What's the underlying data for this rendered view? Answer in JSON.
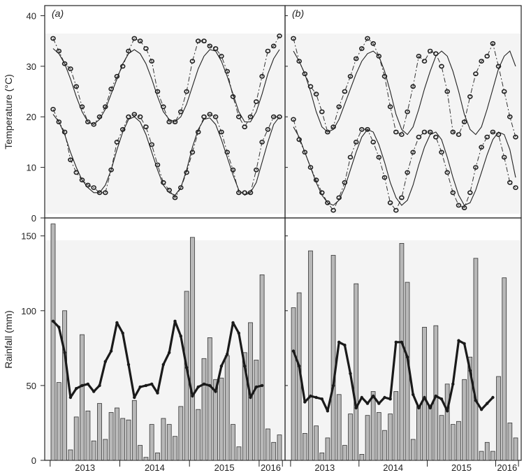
{
  "chart_data": [
    {
      "type": "line",
      "panel_label": "(a)",
      "ylabel": "Temperature (°C)",
      "ylim": [
        0,
        42
      ],
      "yticks": [
        0,
        10,
        20,
        30,
        40
      ],
      "x": [
        "2013-01",
        "2013-02",
        "2013-03",
        "2013-04",
        "2013-05",
        "2013-06",
        "2013-07",
        "2013-08",
        "2013-09",
        "2013-10",
        "2013-11",
        "2013-12",
        "2014-01",
        "2014-02",
        "2014-03",
        "2014-04",
        "2014-05",
        "2014-06",
        "2014-07",
        "2014-08",
        "2014-09",
        "2014-10",
        "2014-11",
        "2014-12",
        "2015-01",
        "2015-02",
        "2015-03",
        "2015-04",
        "2015-05",
        "2015-06",
        "2015-07",
        "2015-08",
        "2015-09",
        "2015-10",
        "2015-11",
        "2015-12",
        "2016-01",
        "2016-02",
        "2016-03",
        "2016-04"
      ],
      "series": [
        {
          "role": "tmax-observed",
          "values": [
            35.5,
            33,
            30.5,
            29.5,
            26,
            22,
            19,
            18.5,
            20,
            22,
            25.5,
            28,
            30,
            33,
            35.5,
            35,
            33.5,
            31,
            25,
            22,
            19,
            19,
            21,
            25,
            31,
            35,
            35,
            34,
            33.5,
            32,
            29,
            24,
            20,
            18,
            20,
            23,
            28,
            33,
            34,
            36
          ]
        },
        {
          "role": "tmax-model",
          "values": [
            33.5,
            32.5,
            30.5,
            27.5,
            24,
            21,
            19,
            18.5,
            19.5,
            21.5,
            24.5,
            27.5,
            30.5,
            32.5,
            33.3,
            32.5,
            30.5,
            27.5,
            24,
            21,
            19.5,
            19,
            20,
            22.5,
            26,
            29.5,
            32,
            33.3,
            33,
            31,
            28,
            24.5,
            21,
            19,
            19,
            21,
            24.5,
            28.5,
            31.5,
            33.3
          ]
        },
        {
          "role": "tmin-observed",
          "values": [
            21.5,
            19,
            17,
            11.5,
            9,
            7.5,
            6.5,
            6,
            5,
            5,
            9.5,
            15,
            17.5,
            20,
            20.5,
            20,
            18,
            14.5,
            10.5,
            7,
            5.5,
            4,
            6,
            9,
            13,
            17,
            20,
            20.5,
            20,
            17,
            13,
            9.5,
            5,
            5,
            5,
            9.5,
            15,
            17.5,
            20,
            20
          ]
        },
        {
          "role": "tmin-model",
          "values": [
            20.5,
            19,
            16.5,
            13,
            10,
            7.5,
            6,
            5,
            5,
            6.5,
            9.5,
            13.5,
            17,
            19.5,
            20,
            19,
            16.5,
            13,
            9.5,
            6.5,
            5,
            4.5,
            6,
            9.5,
            14,
            17.5,
            19.5,
            19.8,
            18.5,
            15.5,
            12,
            8.5,
            5.5,
            4.5,
            5,
            7,
            11,
            15,
            18.5,
            20
          ]
        }
      ]
    },
    {
      "type": "line",
      "panel_label": "(b)",
      "ylim": [
        0,
        42
      ],
      "x": [
        "2013-01",
        "2013-02",
        "2013-03",
        "2013-04",
        "2013-05",
        "2013-06",
        "2013-07",
        "2013-08",
        "2013-09",
        "2013-10",
        "2013-11",
        "2013-12",
        "2014-01",
        "2014-02",
        "2014-03",
        "2014-04",
        "2014-05",
        "2014-06",
        "2014-07",
        "2014-08",
        "2014-09",
        "2014-10",
        "2014-11",
        "2014-12",
        "2015-01",
        "2015-02",
        "2015-03",
        "2015-04",
        "2015-05",
        "2015-06",
        "2015-07",
        "2015-08",
        "2015-09",
        "2015-10",
        "2015-11",
        "2015-12",
        "2016-01",
        "2016-02",
        "2016-03",
        "2016-04"
      ],
      "series": [
        {
          "role": "tmax-observed",
          "values": [
            35.5,
            31,
            28.5,
            26,
            24.5,
            21,
            17,
            18,
            22,
            25,
            28,
            31.5,
            33.5,
            35.5,
            34.5,
            32,
            28,
            22,
            17,
            16.5,
            21,
            26,
            32,
            31,
            33,
            32.5,
            30,
            25,
            17,
            16.5,
            19,
            24,
            28.5,
            31,
            32,
            34.5,
            30,
            25,
            20,
            16
          ]
        },
        {
          "role": "tmax-model",
          "values": [
            33,
            31,
            28.5,
            25,
            21,
            18,
            17,
            17.5,
            19.5,
            22.5,
            25.5,
            28.5,
            31,
            32.5,
            33,
            32,
            29,
            25,
            20.5,
            17.5,
            16.5,
            18,
            21.5,
            25.5,
            29,
            32,
            33,
            32,
            29,
            25,
            20.5,
            17.5,
            16.5,
            18,
            21.5,
            25.5,
            29.5,
            32,
            33,
            30
          ]
        },
        {
          "role": "tmin-observed",
          "values": [
            19.5,
            15.5,
            13,
            10,
            7.5,
            5,
            3,
            1.5,
            4,
            7,
            12,
            15,
            17.5,
            17.5,
            15,
            12,
            8,
            3,
            1.5,
            4,
            9,
            13,
            16,
            17,
            17,
            16,
            13,
            9,
            5,
            2.5,
            2,
            5,
            10,
            14,
            16,
            17,
            16.5,
            12,
            7,
            6
          ]
        },
        {
          "role": "tmin-model",
          "values": [
            18,
            16,
            13,
            10,
            7,
            4.5,
            3,
            2.5,
            3.5,
            6,
            9.5,
            13,
            16,
            17.5,
            17,
            14.5,
            11,
            7,
            4,
            2.5,
            3.5,
            6.5,
            10.5,
            14,
            16.5,
            17,
            15.5,
            12,
            8,
            4.5,
            2.5,
            3,
            5.5,
            9,
            12.5,
            15.5,
            17,
            16.5,
            13.5,
            8
          ]
        }
      ]
    },
    {
      "type": "bar",
      "ylabel": "Rainfall (mm)",
      "ylim": [
        0,
        162
      ],
      "yticks": [
        0,
        50,
        100,
        150
      ],
      "xlabels": [
        "2013",
        "2014",
        "2015",
        "2016"
      ],
      "x": [
        "2013-01",
        "2013-02",
        "2013-03",
        "2013-04",
        "2013-05",
        "2013-06",
        "2013-07",
        "2013-08",
        "2013-09",
        "2013-10",
        "2013-11",
        "2013-12",
        "2014-01",
        "2014-02",
        "2014-03",
        "2014-04",
        "2014-05",
        "2014-06",
        "2014-07",
        "2014-08",
        "2014-09",
        "2014-10",
        "2014-11",
        "2014-12",
        "2015-01",
        "2015-02",
        "2015-03",
        "2015-04",
        "2015-05",
        "2015-06",
        "2015-07",
        "2015-08",
        "2015-09",
        "2015-10",
        "2015-11",
        "2015-12",
        "2016-01",
        "2016-02",
        "2016-03",
        "2016-04"
      ],
      "values": [
        158,
        52,
        100,
        7,
        29,
        84,
        33,
        13,
        38,
        14,
        32,
        35,
        28,
        27,
        40,
        10,
        2,
        24,
        5,
        28,
        24,
        16,
        36,
        113,
        149,
        34,
        68,
        82,
        54,
        55,
        70,
        24,
        9,
        72,
        92,
        67,
        124,
        21,
        12,
        17
      ],
      "line_values": [
        93,
        89,
        72,
        42,
        48,
        50,
        51,
        46,
        50,
        66,
        73,
        92,
        85,
        64,
        42,
        49,
        50,
        51,
        45,
        64,
        72,
        93,
        83,
        62,
        43,
        49,
        51,
        50,
        46,
        63,
        71,
        92,
        85,
        63,
        42,
        49,
        50
      ]
    },
    {
      "type": "bar",
      "ylim": [
        0,
        162
      ],
      "xlabels": [
        "2013",
        "2014",
        "2015",
        "2016"
      ],
      "x": [
        "2013-01",
        "2013-02",
        "2013-03",
        "2013-04",
        "2013-05",
        "2013-06",
        "2013-07",
        "2013-08",
        "2013-09",
        "2013-10",
        "2013-11",
        "2013-12",
        "2014-01",
        "2014-02",
        "2014-03",
        "2014-04",
        "2014-05",
        "2014-06",
        "2014-07",
        "2014-08",
        "2014-09",
        "2014-10",
        "2014-11",
        "2014-12",
        "2015-01",
        "2015-02",
        "2015-03",
        "2015-04",
        "2015-05",
        "2015-06",
        "2015-07",
        "2015-08",
        "2015-09",
        "2015-10",
        "2015-11",
        "2015-12",
        "2016-01",
        "2016-02",
        "2016-03",
        "2016-04"
      ],
      "values": [
        102,
        112,
        18,
        140,
        23,
        5,
        15,
        137,
        44,
        10,
        31,
        118,
        4,
        30,
        46,
        32,
        20,
        31,
        46,
        145,
        119,
        14,
        36,
        89,
        37,
        90,
        30,
        51,
        24,
        26,
        54,
        69,
        135,
        6,
        12,
        6,
        56,
        122,
        25,
        15
      ],
      "line_values": [
        73,
        63,
        39,
        43,
        42,
        41,
        33,
        50,
        79,
        77,
        58,
        35,
        42,
        38,
        43,
        38,
        42,
        41,
        79,
        79,
        69,
        44,
        35,
        42,
        35,
        43,
        41,
        33,
        51,
        80,
        78,
        60,
        40,
        34,
        38,
        42
      ]
    }
  ]
}
